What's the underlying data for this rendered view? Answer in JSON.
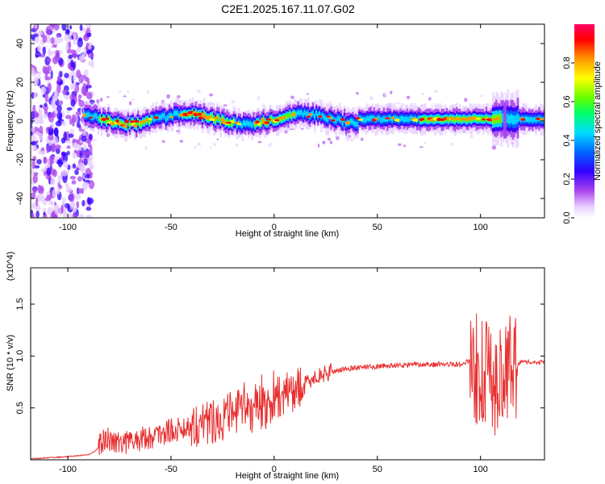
{
  "title": "C2E1.2025.167.11.07.G02",
  "chart_data": [
    {
      "type": "heatmap",
      "name": "spectrogram",
      "xlabel": "Height of straight line (km)",
      "ylabel": "Frequency (Hz)",
      "xlim": [
        -118,
        131
      ],
      "ylim": [
        -50,
        50
      ],
      "xticks": [
        -100,
        -50,
        0,
        50,
        100
      ],
      "yticks": [
        -40,
        -20,
        0,
        20,
        40
      ],
      "colorbar": {
        "label": "Normalized spectral amplitude",
        "range": [
          0,
          1
        ],
        "ticks": [
          0.0,
          0.2,
          0.4,
          0.6,
          0.8
        ],
        "tick_labels": [
          "0.0",
          "0.2",
          "0.4",
          "0.6",
          "0.8"
        ],
        "colors": [
          "#ffffff",
          "#e6ccff",
          "#aa44ee",
          "#3300ff",
          "#0066ff",
          "#00ddff",
          "#00ff66",
          "#66ff00",
          "#ffff00",
          "#ff9900",
          "#ff0000",
          "#ff0066"
        ]
      },
      "band": {
        "center_freq_hz": 1,
        "noisy_region_x": [
          -118,
          -88
        ],
        "strong_segments_x": [
          [
            -85,
            -60
          ],
          [
            -45,
            -20
          ],
          [
            -10,
            10
          ],
          [
            70,
            110
          ]
        ]
      },
      "grid": false
    },
    {
      "type": "line",
      "name": "snr",
      "xlabel": "Height of straight line (km)",
      "ylabel": "SNR (10 * v/v)",
      "y_multiplier": "(x10^4)",
      "xlim": [
        -118,
        131
      ],
      "ylim": [
        0,
        1.85
      ],
      "xticks": [
        -100,
        -50,
        0,
        50,
        100
      ],
      "yticks": [
        0.5,
        1.0,
        1.5
      ],
      "ytick_labels": [
        "0.5",
        "1.0",
        "1.5"
      ],
      "color": "#e83030",
      "grid": false,
      "series": [
        {
          "x": [
            -118,
            -110,
            -100,
            -95,
            -90,
            -87,
            -85,
            -83,
            -80,
            -75,
            -70,
            -65,
            -60,
            -55,
            -50,
            -45,
            -40,
            -35,
            -30,
            -25,
            -20,
            -15,
            -10,
            -5,
            0,
            5,
            10,
            15,
            20,
            25,
            30,
            40,
            50,
            60,
            70,
            80,
            90,
            95,
            100,
            105,
            110,
            115,
            120,
            131
          ],
          "y": [
            0.01,
            0.02,
            0.03,
            0.04,
            0.05,
            0.08,
            0.12,
            0.18,
            0.2,
            0.18,
            0.17,
            0.2,
            0.22,
            0.25,
            0.28,
            0.3,
            0.33,
            0.36,
            0.38,
            0.4,
            0.45,
            0.48,
            0.52,
            0.55,
            0.6,
            0.62,
            0.68,
            0.73,
            0.8,
            0.83,
            0.86,
            0.89,
            0.9,
            0.91,
            0.92,
            0.92,
            0.92,
            0.95,
            0.85,
            0.75,
            0.8,
            0.9,
            0.94,
            0.94
          ]
        }
      ],
      "oscillation_amplitude": [
        {
          "x": [
            -85,
            -60
          ],
          "amp": 0.12
        },
        {
          "x": [
            -60,
            -40
          ],
          "amp": 0.12
        },
        {
          "x": [
            -40,
            -15
          ],
          "amp": 0.22
        },
        {
          "x": [
            -15,
            0
          ],
          "amp": 0.28
        },
        {
          "x": [
            0,
            15
          ],
          "amp": 0.22
        },
        {
          "x": [
            15,
            28
          ],
          "amp": 0.08
        },
        {
          "x": [
            28,
            95
          ],
          "amp": 0.025
        },
        {
          "x": [
            95,
            118
          ],
          "amp": 0.55
        },
        {
          "x": [
            118,
            131
          ],
          "amp": 0.02
        }
      ]
    }
  ]
}
